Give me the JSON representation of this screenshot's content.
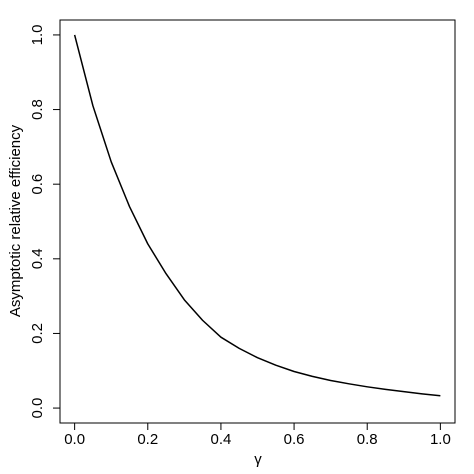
{
  "chart_data": {
    "type": "line",
    "xlabel": "γ",
    "ylabel": "Asymptotic relative efficiency",
    "x": [
      0,
      0.05,
      0.1,
      0.15,
      0.2,
      0.25,
      0.3,
      0.35,
      0.4,
      0.45,
      0.5,
      0.55,
      0.6,
      0.65,
      0.7,
      0.75,
      0.8,
      0.85,
      0.9,
      0.95,
      1.0
    ],
    "series": [
      {
        "color": "#000000",
        "values": [
          1.0,
          0.81,
          0.66,
          0.54,
          0.44,
          0.36,
          0.29,
          0.235,
          0.19,
          0.16,
          0.135,
          0.115,
          0.098,
          0.085,
          0.074,
          0.065,
          0.057,
          0.05,
          0.044,
          0.038,
          0.033
        ]
      }
    ],
    "xlim": [
      -0.04,
      1.04
    ],
    "ylim": [
      -0.04,
      1.04
    ],
    "xticks": [
      {
        "value": 0,
        "label": "0.0"
      },
      0.2,
      0.4,
      0.6,
      0.8,
      {
        "value": 1,
        "label": "1.0"
      }
    ],
    "yticks": [
      {
        "value": 0,
        "label": "0.0"
      },
      0.2,
      0.4,
      0.6,
      0.8,
      {
        "value": 1,
        "label": "1.0"
      }
    ]
  }
}
